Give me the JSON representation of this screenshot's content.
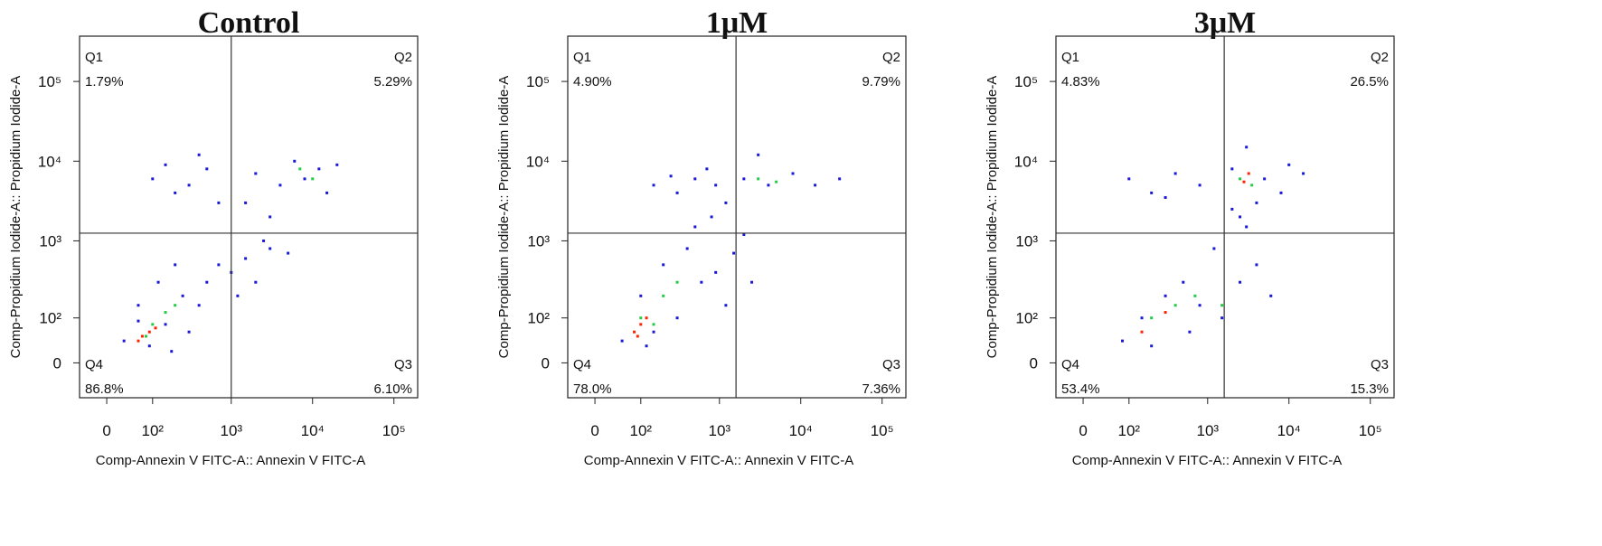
{
  "chart_data": [
    {
      "type": "scatter",
      "title": "Control",
      "xlabel": "Comp-Annexin V FITC-A:: Annexin V FITC-A",
      "ylabel": "Comp-Propidium Iodide-A:: Propidium Iodide-A",
      "xscale": "biexponential",
      "yscale": "biexponential",
      "xlim": [
        -50,
        196000
      ],
      "ylim": [
        -70,
        370000
      ],
      "xticks": [
        0,
        {
          "value": 100,
          "label": "10²"
        },
        {
          "value": 1000,
          "label": "10³"
        },
        {
          "value": 10000,
          "label": "10⁴"
        },
        {
          "value": 100000,
          "label": "10⁵"
        }
      ],
      "yticks": [
        0,
        {
          "value": 100,
          "label": "10²"
        },
        {
          "value": 1000,
          "label": "10³"
        },
        {
          "value": 10000,
          "label": "10⁴"
        },
        {
          "value": 100000,
          "label": "10⁵"
        }
      ],
      "gate": {
        "x": 1000,
        "y": 1250
      },
      "quadrants": [
        "Q1",
        "Q2",
        "Q3",
        "Q4"
      ],
      "values": [
        1.79,
        5.29,
        6.1,
        86.8
      ],
      "value_labels": [
        "1.79%",
        "5.29%",
        "6.10%",
        "86.8%"
      ],
      "series": [
        {
          "color": "#1a1ad6",
          "x": [
            30,
            60,
            120,
            200,
            250,
            400,
            150,
            90,
            300,
            500,
            700,
            1000,
            180,
            60,
            1500,
            2000,
            3000,
            1200,
            2500,
            5000,
            100,
            300,
            500,
            200,
            700,
            150,
            400,
            2000,
            4000,
            8000,
            12000,
            20000,
            6000,
            15000,
            1500,
            3000
          ],
          "y": [
            40,
            150,
            300,
            500,
            200,
            150,
            80,
            30,
            60,
            300,
            500,
            400,
            20,
            90,
            600,
            300,
            800,
            200,
            1000,
            700,
            6000,
            5000,
            8000,
            4000,
            3000,
            9000,
            12000,
            7000,
            5000,
            6000,
            8000,
            9000,
            10000,
            4000,
            3000,
            2000
          ]
        },
        {
          "color": "#22cc44",
          "x": [
            100,
            150,
            80,
            200,
            10000,
            7000
          ],
          "y": [
            80,
            120,
            50,
            150,
            6000,
            8000
          ]
        },
        {
          "color": "#ff2200",
          "x": [
            70,
            90,
            60,
            110
          ],
          "y": [
            50,
            60,
            40,
            70
          ]
        }
      ]
    },
    {
      "type": "scatter",
      "title": "1μM",
      "xlabel": "Comp-Annexin V FITC-A:: Annexin V FITC-A",
      "ylabel": "Comp-Propidium Iodide-A:: Propidium Iodide-A",
      "xscale": "biexponential",
      "yscale": "biexponential",
      "xlim": [
        -50,
        196000
      ],
      "ylim": [
        -70,
        370000
      ],
      "xticks": [
        0,
        {
          "value": 100,
          "label": "10²"
        },
        {
          "value": 1000,
          "label": "10³"
        },
        {
          "value": 10000,
          "label": "10⁴"
        },
        {
          "value": 100000,
          "label": "10⁵"
        }
      ],
      "yticks": [
        0,
        {
          "value": 100,
          "label": "10²"
        },
        {
          "value": 1000,
          "label": "10³"
        },
        {
          "value": 10000,
          "label": "10⁴"
        },
        {
          "value": 100000,
          "label": "10⁵"
        }
      ],
      "gate": {
        "x": 1600,
        "y": 1250
      },
      "quadrants": [
        "Q1",
        "Q2",
        "Q3",
        "Q4"
      ],
      "values": [
        4.9,
        9.79,
        7.36,
        78.0
      ],
      "value_labels": [
        "4.90%",
        "9.79%",
        "7.36%",
        "78.0%"
      ],
      "series": [
        {
          "color": "#1a1ad6",
          "x": [
            50,
            100,
            200,
            400,
            600,
            300,
            150,
            900,
            1500,
            2500,
            500,
            800,
            120,
            1200,
            2000,
            150,
            300,
            500,
            900,
            2000,
            4000,
            8000,
            15000,
            30000,
            3000,
            1200,
            700,
            250
          ],
          "y": [
            40,
            200,
            500,
            800,
            300,
            100,
            60,
            400,
            700,
            300,
            1500,
            2000,
            30,
            150,
            1200,
            5000,
            4000,
            6000,
            5000,
            6000,
            5000,
            7000,
            5000,
            6000,
            12000,
            3000,
            8000,
            6500
          ]
        },
        {
          "color": "#22cc44",
          "x": [
            100,
            200,
            150,
            300,
            5000,
            3000
          ],
          "y": [
            100,
            200,
            80,
            300,
            5500,
            6000
          ]
        },
        {
          "color": "#ff2200",
          "x": [
            80,
            100,
            120,
            90
          ],
          "y": [
            60,
            80,
            100,
            50
          ]
        }
      ]
    },
    {
      "type": "scatter",
      "title": "3μM",
      "xlabel": "Comp-Annexin V FITC-A:: Annexin V FITC-A",
      "ylabel": "Comp-Propidium Iodide-A:: Propidium Iodide-A",
      "xscale": "biexponential",
      "yscale": "biexponential",
      "xlim": [
        -50,
        196000
      ],
      "ylim": [
        -70,
        370000
      ],
      "xticks": [
        0,
        {
          "value": 100,
          "label": "10²"
        },
        {
          "value": 1000,
          "label": "10³"
        },
        {
          "value": 10000,
          "label": "10⁴"
        },
        {
          "value": 100000,
          "label": "10⁵"
        }
      ],
      "yticks": [
        0,
        {
          "value": 100,
          "label": "10²"
        },
        {
          "value": 1000,
          "label": "10³"
        },
        {
          "value": 10000,
          "label": "10⁴"
        },
        {
          "value": 100000,
          "label": "10⁵"
        }
      ],
      "gate": {
        "x": 1600,
        "y": 1250
      },
      "quadrants": [
        "Q1",
        "Q2",
        "Q3",
        "Q4"
      ],
      "values": [
        4.83,
        26.5,
        15.3,
        53.4
      ],
      "value_labels": [
        "4.83%",
        "26.5%",
        "15.3%",
        "53.4%"
      ],
      "series": [
        {
          "color": "#1a1ad6",
          "x": [
            80,
            150,
            300,
            500,
            800,
            1500,
            2500,
            4000,
            6000,
            1200,
            200,
            600,
            3000,
            2000,
            100,
            200,
            400,
            800,
            300,
            2000,
            5000,
            8000,
            15000,
            3000,
            2500,
            10000,
            4000
          ],
          "y": [
            40,
            100,
            200,
            300,
            150,
            100,
            300,
            500,
            200,
            800,
            30,
            60,
            1500,
            2500,
            6000,
            4000,
            7000,
            5000,
            3500,
            8000,
            6000,
            4000,
            7000,
            15000,
            2000,
            9000,
            3000
          ]
        },
        {
          "color": "#22cc44",
          "x": [
            200,
            400,
            700,
            1500,
            2500,
            3500
          ],
          "y": [
            100,
            150,
            200,
            150,
            6000,
            5000
          ]
        },
        {
          "color": "#ff2200",
          "x": [
            150,
            300,
            2800,
            3200
          ],
          "y": [
            60,
            120,
            5500,
            7000
          ]
        }
      ]
    }
  ]
}
